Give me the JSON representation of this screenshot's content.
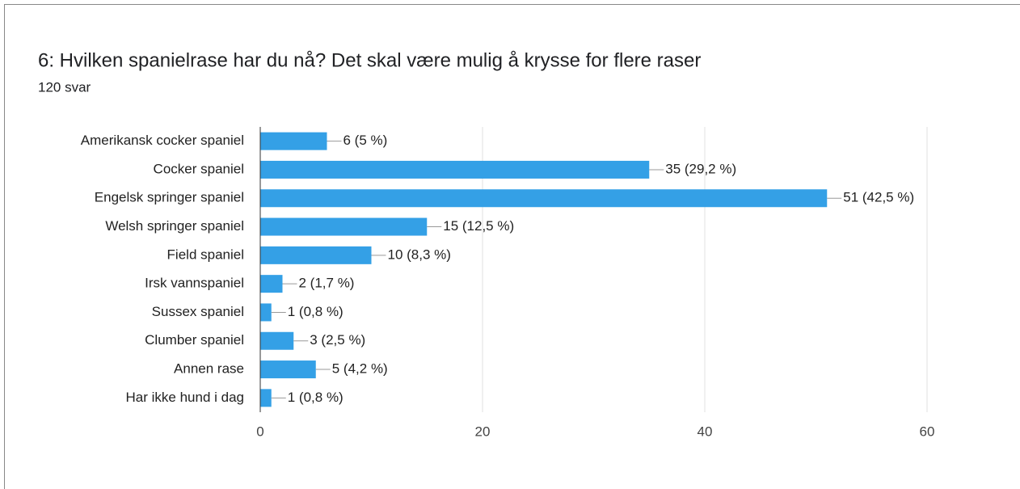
{
  "chart_data": {
    "type": "bar",
    "orientation": "horizontal",
    "title": "6: Hvilken spanielrase har du nå? Det skal være mulig å krysse for flere raser",
    "subtitle": "120 svar",
    "categories": [
      "Amerikansk cocker spaniel",
      "Cocker spaniel",
      "Engelsk springer spaniel",
      "Welsh springer spaniel",
      "Field spaniel",
      "Irsk vannspaniel",
      "Sussex spaniel",
      "Clumber spaniel",
      "Annen rase",
      "Har ikke hund i dag"
    ],
    "values": [
      6,
      35,
      51,
      15,
      10,
      2,
      1,
      3,
      5,
      1
    ],
    "value_labels": [
      "6 (5 %)",
      "35 (29,2 %)",
      "51 (42,5 %)",
      "15 (12,5 %)",
      "10 (8,3 %)",
      "2 (1,7 %)",
      "1 (0,8 %)",
      "3 (2,5 %)",
      "5 (4,2 %)",
      "1 (0,8 %)"
    ],
    "color": "#34a0e6",
    "xlim": [
      0,
      60
    ],
    "xticks": [
      0,
      20,
      40,
      60
    ],
    "grid": true
  }
}
